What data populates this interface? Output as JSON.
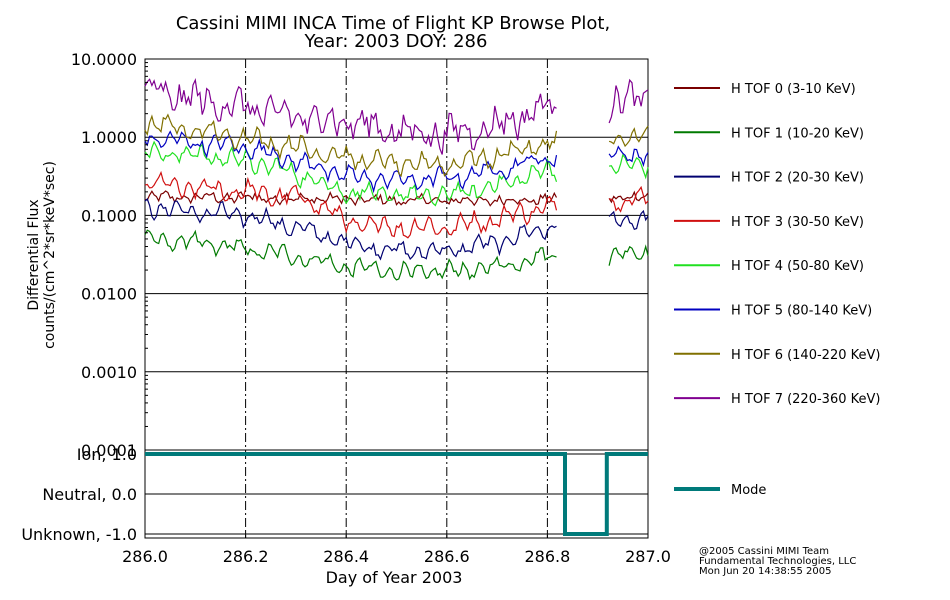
{
  "chart_data": [
    {
      "type": "line",
      "title": "Cassini MIMI INCA Time of Flight KP Browse Plot,",
      "subtitle": "Year: 2003 DOY: 286",
      "ylabel_line1": "Differential Flux",
      "ylabel_line2": "counts/(cm^2*sr*keV*sec)",
      "yscale": "log",
      "ylim": [
        0.0001,
        10
      ],
      "yticks": [
        {
          "v": 10,
          "label": "10.0000"
        },
        {
          "v": 1,
          "label": "1.0000"
        },
        {
          "v": 0.1,
          "label": "0.1000"
        },
        {
          "v": 0.01,
          "label": "0.0100"
        },
        {
          "v": 0.001,
          "label": "0.0010"
        },
        {
          "v": 0.0001,
          "label": "0.0001"
        }
      ],
      "xlim": [
        286.0,
        287.0
      ],
      "gaps": [
        [
          286.82,
          286.92
        ]
      ],
      "series": [
        {
          "name": "H TOF 0 (3-10 KeV)",
          "color": "#7a0000",
          "amp": 0.03,
          "noise": 0.05,
          "x": [
            286.0,
            286.1,
            286.2,
            286.3,
            286.4,
            286.5,
            286.6,
            286.7,
            286.8,
            286.92,
            287.0
          ],
          "y": [
            0.17,
            0.17,
            0.17,
            0.165,
            0.16,
            0.155,
            0.155,
            0.155,
            0.16,
            0.17,
            0.17
          ]
        },
        {
          "name": "H TOF 1 (10-20 KeV)",
          "color": "#007a00",
          "amp": 0.07,
          "noise": 0.05,
          "x": [
            286.0,
            286.1,
            286.2,
            286.3,
            286.4,
            286.5,
            286.6,
            286.7,
            286.8,
            286.92,
            287.0
          ],
          "y": [
            0.05,
            0.045,
            0.037,
            0.03,
            0.022,
            0.019,
            0.019,
            0.022,
            0.031,
            0.03,
            0.035
          ]
        },
        {
          "name": "H TOF 2 (20-30 KeV)",
          "color": "#000070",
          "amp": 0.07,
          "noise": 0.05,
          "x": [
            286.0,
            286.1,
            286.2,
            286.3,
            286.4,
            286.5,
            286.6,
            286.7,
            286.8,
            286.92,
            287.0
          ],
          "y": [
            0.13,
            0.11,
            0.1,
            0.07,
            0.045,
            0.035,
            0.035,
            0.045,
            0.07,
            0.08,
            0.09
          ]
        },
        {
          "name": "H TOF 3 (30-50 KeV)",
          "color": "#d01010",
          "amp": 0.08,
          "noise": 0.06,
          "x": [
            286.0,
            286.1,
            286.2,
            286.3,
            286.35,
            286.4,
            286.5,
            286.6,
            286.7,
            286.8,
            286.92,
            287.0
          ],
          "y": [
            0.26,
            0.22,
            0.2,
            0.17,
            0.14,
            0.08,
            0.07,
            0.07,
            0.09,
            0.13,
            0.16,
            0.16
          ]
        },
        {
          "name": "H TOF 4 (50-80 KeV)",
          "color": "#20e020",
          "amp": 0.07,
          "noise": 0.06,
          "x": [
            286.0,
            286.1,
            286.2,
            286.3,
            286.4,
            286.5,
            286.6,
            286.7,
            286.8,
            286.92,
            287.0
          ],
          "y": [
            0.65,
            0.6,
            0.5,
            0.35,
            0.2,
            0.18,
            0.18,
            0.24,
            0.38,
            0.4,
            0.45
          ]
        },
        {
          "name": "H TOF 5 (80-140 KeV)",
          "color": "#0000c0",
          "amp": 0.07,
          "noise": 0.06,
          "x": [
            286.0,
            286.1,
            286.2,
            286.3,
            286.4,
            286.5,
            286.6,
            286.7,
            286.8,
            286.92,
            287.0
          ],
          "y": [
            1.0,
            0.85,
            0.75,
            0.5,
            0.32,
            0.28,
            0.3,
            0.38,
            0.55,
            0.6,
            0.62
          ]
        },
        {
          "name": "H TOF 6 (140-220 KeV)",
          "color": "#807000",
          "amp": 0.08,
          "noise": 0.06,
          "x": [
            286.0,
            286.1,
            286.2,
            286.3,
            286.4,
            286.5,
            286.6,
            286.7,
            286.8,
            286.92,
            287.0
          ],
          "y": [
            1.5,
            1.2,
            1.0,
            0.75,
            0.55,
            0.45,
            0.45,
            0.58,
            0.85,
            0.95,
            1.0
          ]
        },
        {
          "name": "H TOF 7 (220-360 KeV)",
          "color": "#800090",
          "amp": 0.1,
          "noise": 0.14,
          "x": [
            286.0,
            286.1,
            286.2,
            286.3,
            286.4,
            286.5,
            286.6,
            286.7,
            286.8,
            286.92,
            287.0
          ],
          "y": [
            4.0,
            3.0,
            2.4,
            1.8,
            1.6,
            1.2,
            1.1,
            1.4,
            2.5,
            2.8,
            3.0
          ]
        }
      ]
    },
    {
      "type": "line",
      "ylim": [
        -1.1,
        1.1
      ],
      "yticks": [
        {
          "v": 1,
          "label": "Ion, 1.0"
        },
        {
          "v": 0,
          "label": "Neutral, 0.0"
        },
        {
          "v": -1,
          "label": "Unknown, -1.0"
        }
      ],
      "xlim": [
        286.0,
        287.0
      ],
      "xticks": [
        "286.0",
        "286.2",
        "286.4",
        "286.6",
        "286.8",
        "287.0"
      ],
      "xlabel": "Day of Year 2003",
      "series": [
        {
          "name": "Mode",
          "color": "#007a7a",
          "x": [
            286.0,
            286.835,
            286.835,
            286.918,
            286.918,
            287.0
          ],
          "y": [
            1,
            1,
            -1,
            -1,
            1,
            1
          ]
        }
      ]
    }
  ],
  "credits": [
    "@2005 Cassini MIMI Team",
    "Fundamental Technologies, LLC",
    "Mon Jun 20 14:38:55 2005"
  ]
}
